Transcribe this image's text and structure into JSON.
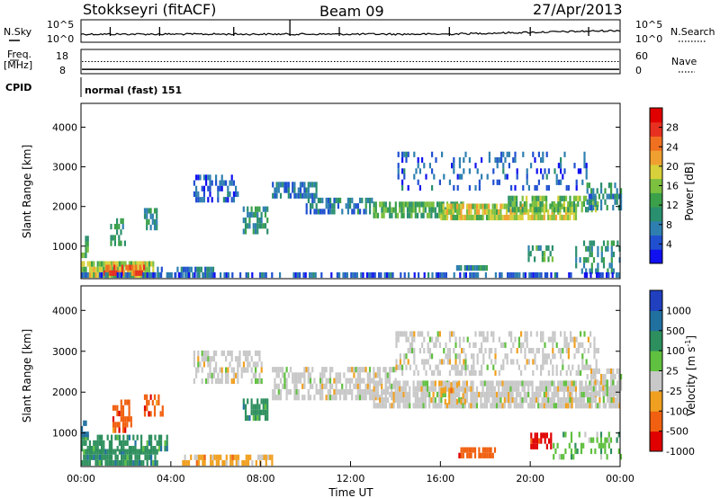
{
  "header": {
    "station": "Stokkseyri (fitACF)",
    "beam": "Beam 09",
    "date": "27/Apr/2013"
  },
  "sky_panel": {
    "left_label": "N.Sky",
    "right_label": "N.Search",
    "left_ticks": [
      "10^5",
      "10^0"
    ],
    "right_ticks": [
      "10^5",
      "10^0"
    ]
  },
  "freq_panel": {
    "left_label_1": "Freq.",
    "left_label_2": "[MHz]",
    "right_label": "Nave",
    "left_ticks": [
      "18",
      "8"
    ],
    "right_ticks": [
      "60",
      "0"
    ],
    "freq_value_mhz": 9.8,
    "nave_value": 30
  },
  "cpid": {
    "label": "CPID",
    "mode": "normal (fast) 151"
  },
  "chart_data": [
    {
      "type": "heatmap",
      "name": "power",
      "ylabel": "Slant Range [km]",
      "yticks": [
        "1000",
        "2000",
        "3000",
        "4000"
      ],
      "ylim": [
        180,
        4600
      ],
      "xlim_hours": [
        0,
        24
      ],
      "colorbar": {
        "label": "Power [dB]",
        "ticks": [
          "4",
          "8",
          "12",
          "16",
          "20",
          "24",
          "28"
        ],
        "range": [
          0,
          32
        ],
        "colors": [
          "#1010f0",
          "#2050d0",
          "#2e7fb0",
          "#2a8f6e",
          "#3aa04a",
          "#7cc040",
          "#d8d03a",
          "#f0a030",
          "#f07020",
          "#e83020",
          "#e00000"
        ]
      },
      "bands": [
        {
          "t0": 0.0,
          "t1": 3.2,
          "r0": 200,
          "r1": 600,
          "v": 17,
          "d": 0.95
        },
        {
          "t0": 1.0,
          "t1": 2.8,
          "r0": 250,
          "r1": 500,
          "v": 25,
          "d": 0.8
        },
        {
          "t0": 3.2,
          "t1": 6.0,
          "r0": 200,
          "r1": 450,
          "v": 7,
          "d": 0.6
        },
        {
          "t0": 0.0,
          "t1": 0.3,
          "r0": 700,
          "r1": 1200,
          "v": 13,
          "d": 0.6
        },
        {
          "t0": 1.3,
          "t1": 2.0,
          "r0": 1000,
          "r1": 1700,
          "v": 11,
          "d": 0.45
        },
        {
          "t0": 2.8,
          "t1": 3.4,
          "r0": 1400,
          "r1": 1900,
          "v": 10,
          "d": 0.5
        },
        {
          "t0": 5.0,
          "t1": 7.0,
          "r0": 2100,
          "r1": 2800,
          "v": 5,
          "d": 0.5
        },
        {
          "t0": 7.2,
          "t1": 8.3,
          "r0": 1300,
          "r1": 1900,
          "v": 10,
          "d": 0.6
        },
        {
          "t0": 8.5,
          "t1": 10.5,
          "r0": 2200,
          "r1": 2600,
          "v": 7,
          "d": 0.7
        },
        {
          "t0": 10.0,
          "t1": 13.0,
          "r0": 1800,
          "r1": 2200,
          "v": 8,
          "d": 0.6
        },
        {
          "t0": 13.0,
          "t1": 17.0,
          "r0": 1700,
          "r1": 2000,
          "v": 13,
          "d": 0.75
        },
        {
          "t0": 16.0,
          "t1": 22.0,
          "r0": 1650,
          "r1": 1950,
          "v": 18,
          "d": 0.8
        },
        {
          "t0": 19.0,
          "t1": 23.0,
          "r0": 1850,
          "r1": 2150,
          "v": 14,
          "d": 0.7
        },
        {
          "t0": 14.0,
          "t1": 22.5,
          "r0": 2400,
          "r1": 3300,
          "v": 5,
          "d": 0.22
        },
        {
          "t0": 22.5,
          "t1": 24.0,
          "r0": 1900,
          "r1": 2500,
          "v": 9,
          "d": 0.5
        },
        {
          "t0": 16.7,
          "t1": 18.2,
          "r0": 380,
          "r1": 520,
          "v": 9,
          "d": 0.7
        },
        {
          "t0": 19.8,
          "t1": 21.0,
          "r0": 600,
          "r1": 900,
          "v": 12,
          "d": 0.5
        },
        {
          "t0": 22.0,
          "t1": 24.0,
          "r0": 300,
          "r1": 1100,
          "v": 10,
          "d": 0.45
        },
        {
          "t0": 0.0,
          "t1": 24.0,
          "r0": 200,
          "r1": 260,
          "v": 5,
          "d": 0.5
        }
      ]
    },
    {
      "type": "heatmap",
      "name": "velocity",
      "ylabel": "Slant Range [km]",
      "yticks": [
        "1000",
        "2000",
        "3000",
        "4000"
      ],
      "ylim": [
        180,
        4600
      ],
      "xlim_hours": [
        0,
        24
      ],
      "xticks": [
        "00:00",
        "04:00",
        "08:00",
        "12:00",
        "16:00",
        "20:00",
        "00:00"
      ],
      "xlabel": "Time UT",
      "colorbar": {
        "label": "Velocity  [m s^-1]",
        "ticks": [
          "1000",
          "500",
          "100",
          "25",
          "-25",
          "-100",
          "-500",
          "-1000"
        ],
        "colors": [
          "#2040c0",
          "#2070a0",
          "#2e8f5e",
          "#60c040",
          "#c8c8c8",
          "#f0a020",
          "#f06010",
          "#e00000"
        ]
      },
      "bands": [
        {
          "t0": 0.0,
          "t1": 3.4,
          "r0": 200,
          "r1": 550,
          "c": 2,
          "d": 0.9
        },
        {
          "t0": 0.0,
          "t1": 3.8,
          "r0": 550,
          "r1": 850,
          "c": 2,
          "d": 0.55
        },
        {
          "t0": 0.0,
          "t1": 0.3,
          "r0": 900,
          "r1": 1300,
          "c": 1,
          "d": 0.6
        },
        {
          "t0": 1.4,
          "t1": 2.2,
          "r0": 1000,
          "r1": 1800,
          "c": 6,
          "d": 0.5
        },
        {
          "t0": 2.8,
          "t1": 3.6,
          "r0": 1400,
          "r1": 1900,
          "c": 6,
          "d": 0.5
        },
        {
          "t0": 4.5,
          "t1": 8.5,
          "r0": 200,
          "r1": 450,
          "c": 5,
          "d": 0.65
        },
        {
          "t0": 7.2,
          "t1": 8.3,
          "r0": 1300,
          "r1": 1800,
          "c": 2,
          "d": 0.7
        },
        {
          "t0": 5.0,
          "t1": 8.0,
          "r0": 2200,
          "r1": 2900,
          "c": 4,
          "d": 0.55
        },
        {
          "t0": 8.5,
          "t1": 14.0,
          "r0": 1800,
          "r1": 2600,
          "c": 4,
          "d": 0.6
        },
        {
          "t0": 13.0,
          "t1": 24.0,
          "r0": 1600,
          "r1": 2200,
          "c": 4,
          "d": 0.8
        },
        {
          "t0": 14.0,
          "t1": 23.0,
          "r0": 2400,
          "r1": 3400,
          "c": 4,
          "d": 0.4
        },
        {
          "t0": 16.0,
          "t1": 17.2,
          "r0": 1700,
          "r1": 2200,
          "c": 5,
          "d": 0.35
        },
        {
          "t0": 16.8,
          "t1": 18.4,
          "r0": 380,
          "r1": 520,
          "c": 6,
          "d": 0.8
        },
        {
          "t0": 20.0,
          "t1": 21.0,
          "r0": 600,
          "r1": 900,
          "c": 7,
          "d": 0.6
        },
        {
          "t0": 21.0,
          "t1": 24.0,
          "r0": 350,
          "r1": 900,
          "c": 3,
          "d": 0.3
        },
        {
          "t0": 22.5,
          "t1": 24.0,
          "r0": 1900,
          "r1": 2500,
          "c": 4,
          "d": 0.6
        }
      ]
    }
  ]
}
